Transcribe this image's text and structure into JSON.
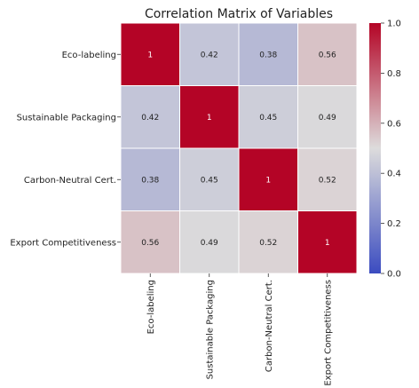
{
  "chart_data": {
    "type": "heatmap",
    "title": "Correlation Matrix of Variables",
    "row_labels": [
      "Eco-labeling",
      "Sustainable Packaging",
      "Carbon-Neutral Cert.",
      "Export Competitiveness"
    ],
    "col_labels": [
      "Eco-labeling",
      "Sustainable Packaging",
      "Carbon-Neutral Cert.",
      "Export Competitiveness"
    ],
    "values": [
      [
        1,
        0.42,
        0.38,
        0.56
      ],
      [
        0.42,
        1,
        0.45,
        0.49
      ],
      [
        0.38,
        0.45,
        1,
        0.52
      ],
      [
        0.56,
        0.49,
        0.52,
        1
      ]
    ],
    "cell_labels": [
      [
        "1",
        "0.42",
        "0.38",
        "0.56"
      ],
      [
        "0.42",
        "1",
        "0.45",
        "0.49"
      ],
      [
        "0.38",
        "0.45",
        "1",
        "0.52"
      ],
      [
        "0.56",
        "0.49",
        "0.52",
        "1"
      ]
    ],
    "colormap": "coolwarm",
    "vmin": 0,
    "vmax": 1,
    "colorbar": {
      "ticks": [
        0,
        0.2,
        0.4,
        0.6,
        0.8,
        1
      ],
      "tick_labels": [
        "0.0",
        "0.2",
        "0.4",
        "0.6",
        "0.8",
        "1.0"
      ]
    },
    "colors": {
      "low": "#3b4cc0",
      "mid": "#dddcdc",
      "high": "#b40426"
    }
  }
}
